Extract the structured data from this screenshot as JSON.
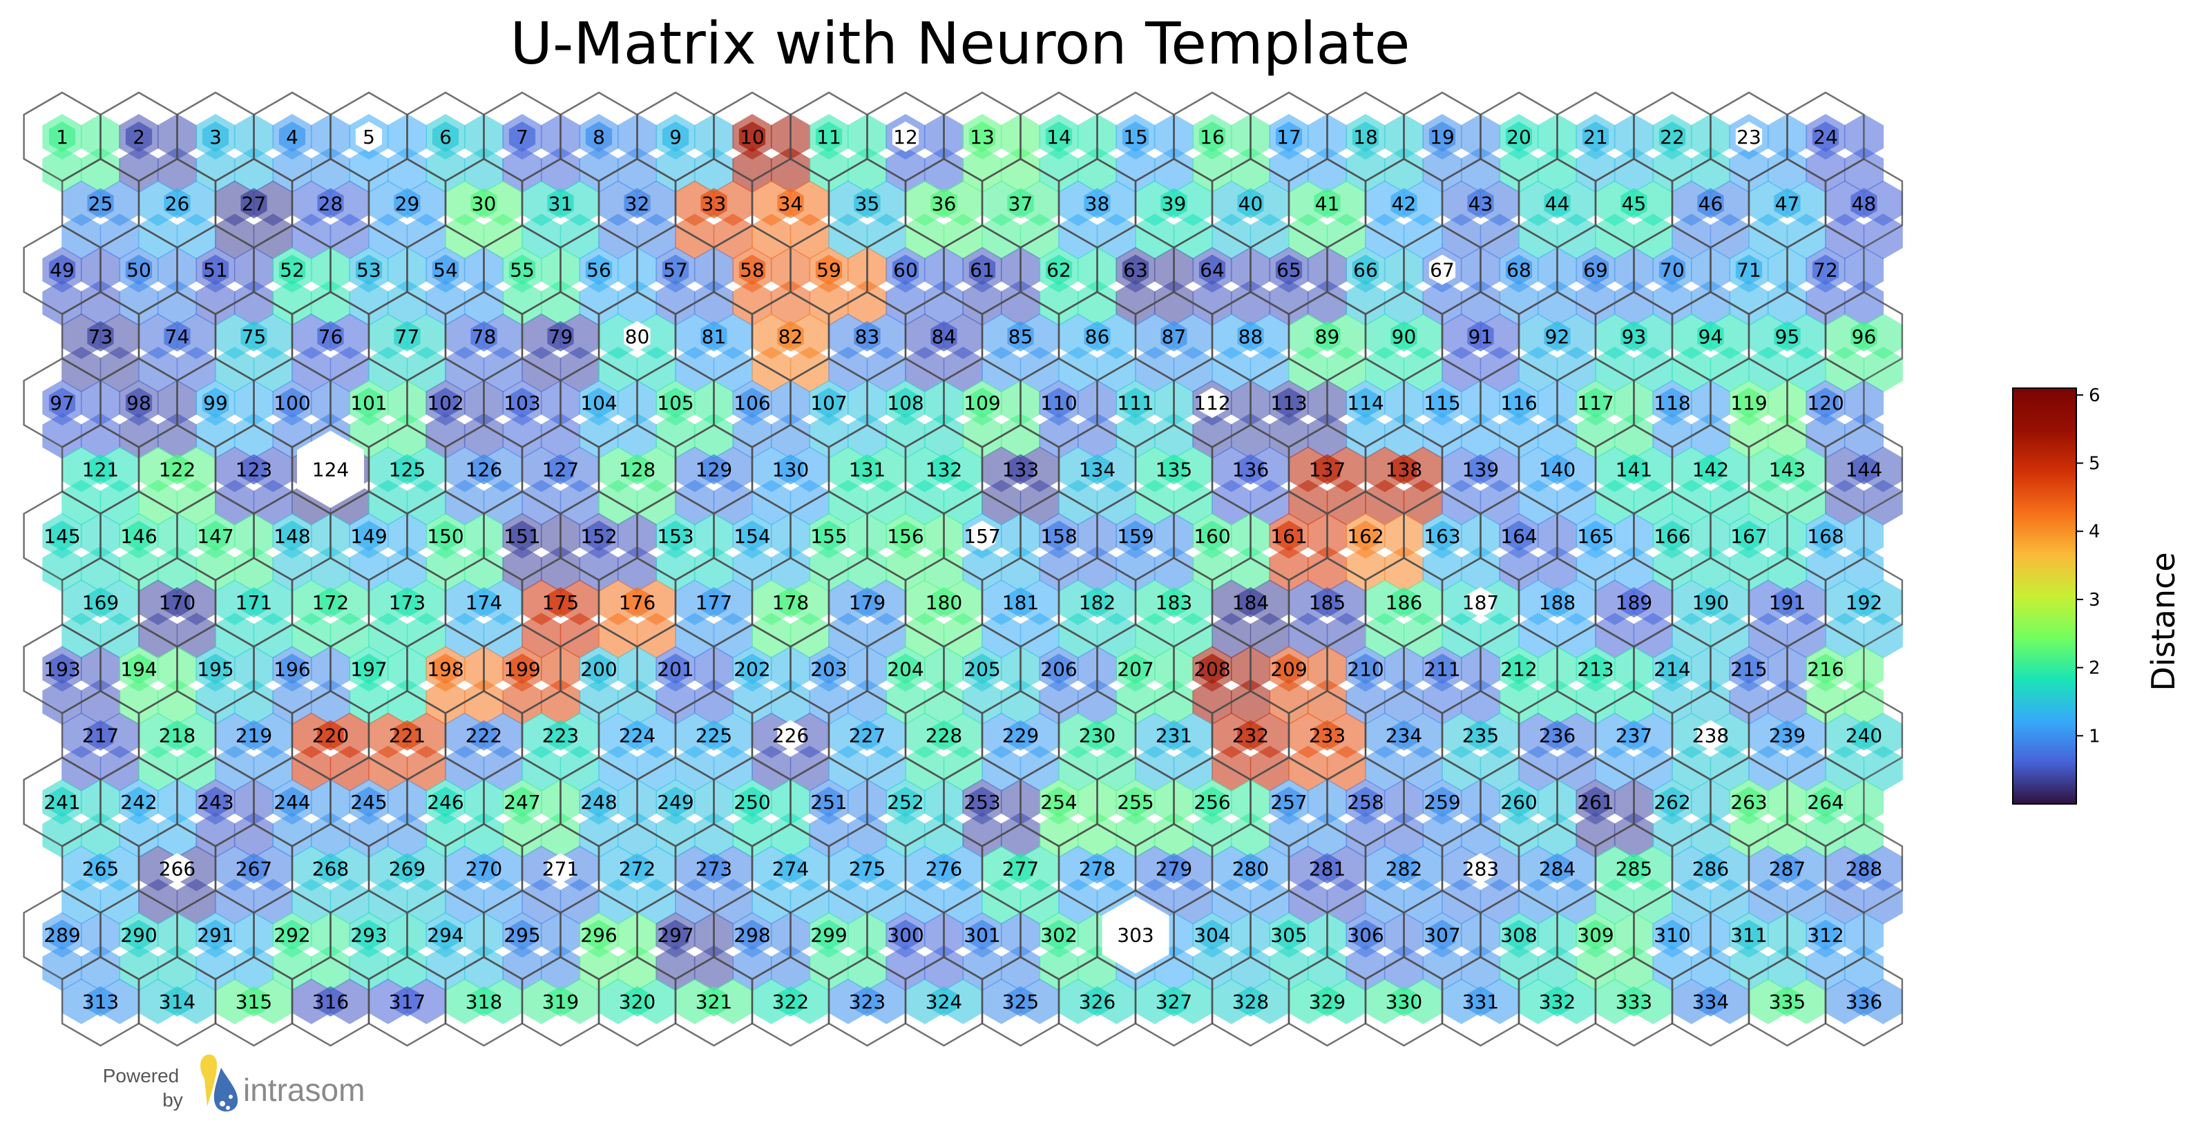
{
  "chart_data": {
    "type": "heatmap",
    "title": "U-Matrix with Neuron Template",
    "grid": {
      "columns": 24,
      "rows": 14
    },
    "neuron_ids": {
      "first": 1,
      "last": 336
    },
    "colorbar": {
      "label": "Distance",
      "ticks": [
        1,
        2,
        3,
        4,
        5,
        6
      ],
      "range": [
        0,
        6.1
      ],
      "colormap": "turbo"
    },
    "empty_neurons": [
      5,
      12,
      23,
      67,
      80,
      112,
      124,
      157,
      187,
      226,
      238,
      266,
      271,
      283,
      303
    ],
    "values_note": "per-neuron distance values are read approximately from cell colors",
    "high_distance_neurons": [
      10,
      33,
      34,
      58,
      59,
      82,
      137,
      138,
      161,
      162,
      175,
      176,
      198,
      199,
      208,
      209,
      220,
      221,
      232,
      233
    ]
  },
  "branding": {
    "powered_line1": "Powered",
    "powered_line2": "by",
    "brand_name": "intrasom"
  },
  "colors": {
    "outline": "#4d4d4d",
    "brand_yellow": "#f5d33f",
    "brand_blue": "#3f6fb5"
  }
}
